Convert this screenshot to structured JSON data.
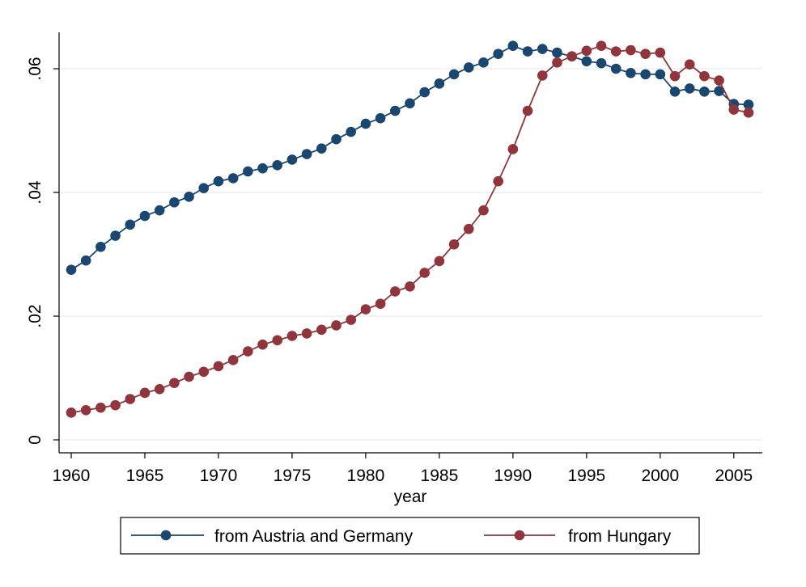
{
  "chart_data": {
    "type": "line",
    "title": "",
    "xlabel": "year",
    "ylabel": "",
    "xlim": [
      1960,
      2006
    ],
    "ylim": [
      0,
      0.066
    ],
    "x_ticks": [
      1960,
      1965,
      1970,
      1975,
      1980,
      1985,
      1990,
      1995,
      2000,
      2005
    ],
    "x_tick_labels": [
      "1960",
      "1965",
      "1970",
      "1975",
      "1980",
      "1985",
      "1990",
      "1995",
      "2000",
      "2005"
    ],
    "y_ticks": [
      0,
      0.02,
      0.04,
      0.06
    ],
    "y_tick_labels": [
      "0",
      ".02",
      ".04",
      ".06"
    ],
    "grid": true,
    "legend_position": "bottom",
    "x": [
      1960,
      1961,
      1962,
      1963,
      1964,
      1965,
      1966,
      1967,
      1968,
      1969,
      1970,
      1971,
      1972,
      1973,
      1974,
      1975,
      1976,
      1977,
      1978,
      1979,
      1980,
      1981,
      1982,
      1983,
      1984,
      1985,
      1986,
      1987,
      1988,
      1989,
      1990,
      1991,
      1992,
      1993,
      1994,
      1995,
      1996,
      1997,
      1998,
      1999,
      2000,
      2001,
      2002,
      2003,
      2004,
      2005,
      2006
    ],
    "series": [
      {
        "name": "from Austria and Germany",
        "color": "#1a476f",
        "values": [
          0.0275,
          0.029,
          0.0312,
          0.033,
          0.0348,
          0.0362,
          0.0371,
          0.0384,
          0.0393,
          0.0407,
          0.0418,
          0.0423,
          0.0434,
          0.0439,
          0.0444,
          0.0453,
          0.0462,
          0.0471,
          0.0486,
          0.0498,
          0.0511,
          0.052,
          0.0532,
          0.0544,
          0.0562,
          0.0576,
          0.0591,
          0.0602,
          0.061,
          0.0624,
          0.0637,
          0.0628,
          0.0632,
          0.0626,
          0.062,
          0.0612,
          0.0609,
          0.06,
          0.0593,
          0.0591,
          0.0591,
          0.0563,
          0.0568,
          0.0563,
          0.0564,
          0.0543,
          0.0542
        ]
      },
      {
        "name": "from Hungary",
        "color": "#90353b",
        "values": [
          0.0044,
          0.0048,
          0.0052,
          0.0056,
          0.0066,
          0.0076,
          0.0082,
          0.0092,
          0.0102,
          0.011,
          0.0119,
          0.0129,
          0.0143,
          0.0154,
          0.0161,
          0.0168,
          0.0172,
          0.0178,
          0.0185,
          0.0194,
          0.0211,
          0.022,
          0.024,
          0.0248,
          0.027,
          0.0289,
          0.0316,
          0.0341,
          0.0371,
          0.0418,
          0.047,
          0.0532,
          0.0589,
          0.061,
          0.062,
          0.0629,
          0.0637,
          0.0628,
          0.063,
          0.0624,
          0.0626,
          0.0588,
          0.0607,
          0.0588,
          0.0581,
          0.0534,
          0.0529
        ]
      }
    ]
  }
}
